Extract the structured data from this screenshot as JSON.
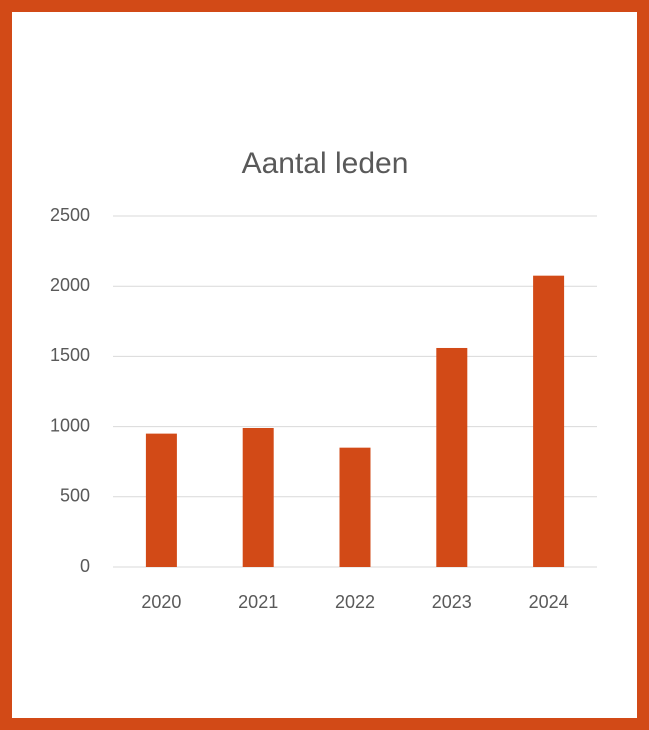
{
  "chart_data": {
    "type": "bar",
    "title": "Aantal leden",
    "categories": [
      "2020",
      "2021",
      "2022",
      "2023",
      "2024"
    ],
    "values": [
      950,
      990,
      850,
      1560,
      2075
    ],
    "color": "#d24a17",
    "ylim": [
      0,
      2500
    ],
    "yticks": [
      0,
      500,
      1000,
      1500,
      2000,
      2500
    ],
    "grid": true
  }
}
